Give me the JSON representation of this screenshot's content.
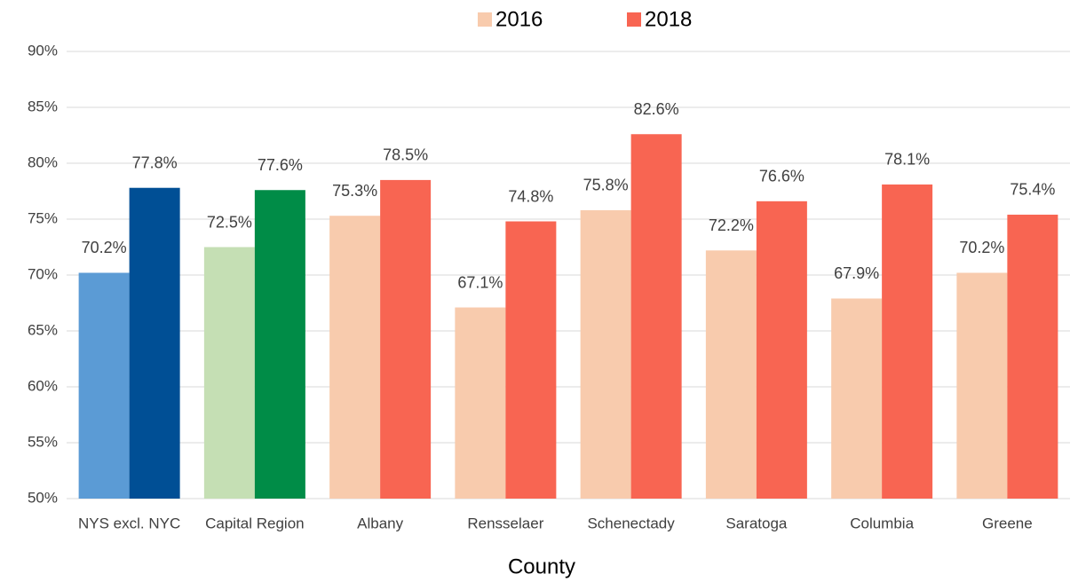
{
  "chart_data": {
    "type": "bar",
    "x_label": "County",
    "categories": [
      "NYS excl. NYC",
      "Capital Region",
      "Albany",
      "Rensselaer",
      "Schenectady",
      "Saratoga",
      "Columbia",
      "Greene"
    ],
    "series": [
      {
        "name": "2016",
        "color": "#F8CBAD",
        "colors": [
          "#5B9BD5",
          "#C5DFB4",
          "#F8CBAD",
          "#F8CBAD",
          "#F8CBAD",
          "#F8CBAD",
          "#F8CBAD",
          "#F8CBAD"
        ],
        "values": [
          70.2,
          72.5,
          75.3,
          67.1,
          75.8,
          72.2,
          67.9,
          70.2
        ],
        "value_labels": [
          "70.2%",
          "72.5%",
          "75.3%",
          "67.1%",
          "75.8%",
          "72.2%",
          "67.9%",
          "70.2%"
        ]
      },
      {
        "name": "2018",
        "color": "#F86552",
        "colors": [
          "#004F95",
          "#008C47",
          "#F86552",
          "#F86552",
          "#F86552",
          "#F86552",
          "#F86552",
          "#F86552"
        ],
        "values": [
          77.8,
          77.6,
          78.5,
          74.8,
          82.6,
          76.6,
          78.1,
          75.4
        ],
        "value_labels": [
          "77.8%",
          "77.6%",
          "78.5%",
          "74.8%",
          "82.6%",
          "76.6%",
          "78.1%",
          "75.4%"
        ]
      }
    ],
    "ylim": [
      50,
      90
    ],
    "yticks": [
      {
        "value": 50,
        "label": "50%"
      },
      {
        "value": 55,
        "label": "55%"
      },
      {
        "value": 60,
        "label": "60%"
      },
      {
        "value": 65,
        "label": "65%"
      },
      {
        "value": 70,
        "label": "70%"
      },
      {
        "value": 75,
        "label": "75%"
      },
      {
        "value": 80,
        "label": "80%"
      },
      {
        "value": 85,
        "label": "85%"
      },
      {
        "value": 90,
        "label": "90%"
      }
    ],
    "grid": true,
    "legend": "top"
  }
}
